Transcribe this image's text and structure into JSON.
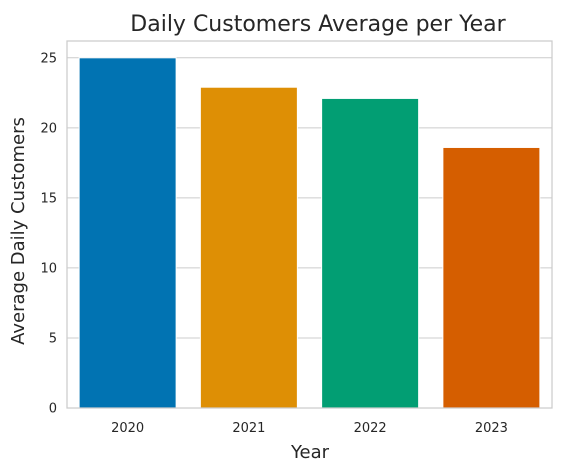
{
  "chart_data": {
    "type": "bar",
    "title": "Daily Customers Average per Year",
    "xlabel": "Year",
    "ylabel": "Average Daily Customers",
    "categories": [
      "2020",
      "2021",
      "2022",
      "2023"
    ],
    "values": [
      25.0,
      22.9,
      22.1,
      18.6
    ],
    "colors": [
      "#0173b2",
      "#de8f05",
      "#029e73",
      "#d55e00"
    ],
    "ylim": [
      0,
      26.2
    ],
    "yticks": [
      0,
      5,
      10,
      15,
      20,
      25
    ],
    "grid": true,
    "legend": "none"
  }
}
